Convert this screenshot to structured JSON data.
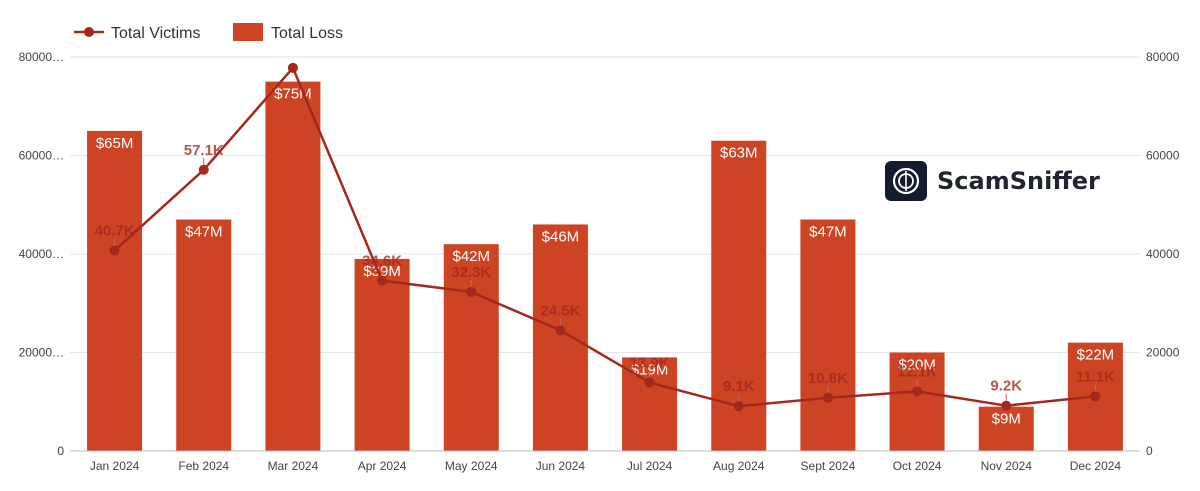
{
  "chart_data": {
    "type": "bar",
    "categories": [
      "Jan 2024",
      "Feb 2024",
      "Mar 2024",
      "Apr 2024",
      "May 2024",
      "Jun 2024",
      "Jul 2024",
      "Aug 2024",
      "Sept 2024",
      "Oct 2024",
      "Nov 2024",
      "Dec 2024"
    ],
    "series": [
      {
        "name": "Total Loss",
        "type": "bar",
        "axis": "left",
        "values": [
          65000,
          47000,
          75000,
          39000,
          42000,
          46000,
          19000,
          63000,
          47000,
          20000,
          9000,
          22000
        ],
        "labels": [
          "$65M",
          "$47M",
          "$75M",
          "$39M",
          "$42M",
          "$46M",
          "$19M",
          "$63M",
          "$47M",
          "$20M",
          "$9M",
          "$22M"
        ]
      },
      {
        "name": "Total Victims",
        "type": "line",
        "axis": "right",
        "values": [
          40700,
          57100,
          77800,
          34600,
          32300,
          24500,
          13900,
          9100,
          10800,
          12100,
          9200,
          11100
        ],
        "labels": [
          "40.7K",
          "57.1K",
          "",
          "34.6K",
          "32.3K",
          "24.5K",
          "13.9K",
          "9.1K",
          "10.8K",
          "12.1K",
          "9.2K",
          "11.1K"
        ]
      }
    ],
    "y_left": {
      "min": 0,
      "max": 80000,
      "ticks": [
        0,
        20000,
        40000,
        60000,
        80000
      ],
      "tick_labels": [
        "0",
        "20000…",
        "40000…",
        "60000…",
        "80000…"
      ]
    },
    "y_right": {
      "min": 0,
      "max": 80000,
      "ticks": [
        0,
        20000,
        40000,
        60000,
        80000
      ],
      "tick_labels": [
        "0",
        "20000",
        "40000",
        "60000",
        "80000"
      ]
    },
    "legend": [
      {
        "name": "Total Victims",
        "kind": "line"
      },
      {
        "name": "Total Loss",
        "kind": "bar"
      }
    ],
    "legend_position": "top-left",
    "grid": true
  },
  "watermark": {
    "brand": "ScamSniffer"
  },
  "colors": {
    "bar": "#cc4423",
    "line": "#a4281c",
    "grid": "#e6e6e6",
    "label_dark": "#a4281c",
    "brand_badge": "#151b2e"
  }
}
